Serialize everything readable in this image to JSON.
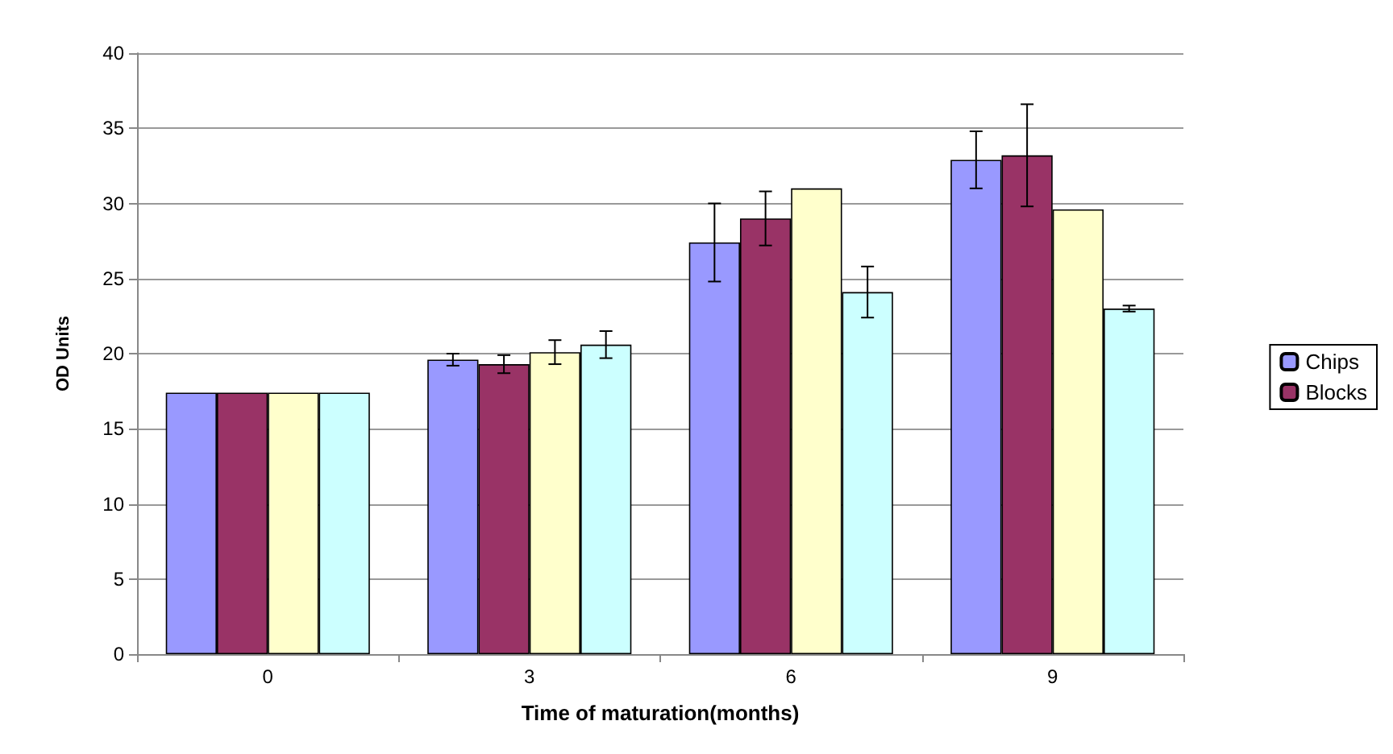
{
  "chart_data": {
    "type": "bar",
    "xlabel": "Time of maturation(months)",
    "ylabel": "OD Units",
    "categories": [
      "0",
      "3",
      "6",
      "9"
    ],
    "series": [
      {
        "name": "Chips",
        "color": "#9999ff",
        "values": [
          17.4,
          19.6,
          27.4,
          32.9
        ],
        "errors": [
          null,
          0.4,
          2.6,
          1.9
        ]
      },
      {
        "name": "Blocks",
        "color": "#993366",
        "values": [
          17.4,
          19.3,
          29.0,
          33.2
        ],
        "errors": [
          null,
          0.6,
          1.8,
          3.4
        ]
      },
      {
        "color": "#ffffcc",
        "values": [
          17.4,
          20.1,
          31.0,
          29.6
        ],
        "errors": [
          null,
          0.8,
          null,
          null
        ]
      },
      {
        "color": "#ccffff",
        "values": [
          17.4,
          20.6,
          24.1,
          23.0
        ],
        "errors": [
          null,
          0.9,
          1.7,
          0.2
        ]
      }
    ],
    "ylim": [
      0,
      40
    ],
    "yticks": [
      0,
      5,
      10,
      15,
      20,
      25,
      30,
      35,
      40
    ],
    "grid": "y",
    "legend": "right"
  }
}
